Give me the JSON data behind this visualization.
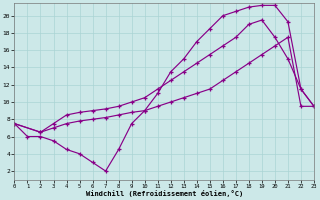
{
  "background_color": "#cce8e8",
  "grid_color": "#aad4d4",
  "line_color": "#880088",
  "xlim": [
    0,
    23
  ],
  "ylim": [
    1,
    21.5
  ],
  "xticks": [
    0,
    1,
    2,
    3,
    4,
    5,
    6,
    7,
    8,
    9,
    10,
    11,
    12,
    13,
    14,
    15,
    16,
    17,
    18,
    19,
    20,
    21,
    22,
    23
  ],
  "yticks": [
    2,
    4,
    6,
    8,
    10,
    12,
    14,
    16,
    18,
    20
  ],
  "xlabel": "Windchill (Refroidissement éolien,°C)",
  "curve1_x": [
    0,
    1,
    2,
    3,
    4,
    5,
    6,
    7,
    8,
    9,
    10,
    11,
    12,
    13,
    14,
    15,
    16,
    17,
    18,
    19,
    20,
    21,
    22,
    23
  ],
  "curve1_y": [
    7.5,
    6.0,
    6.0,
    5.5,
    4.5,
    4.0,
    3.0,
    2.0,
    4.5,
    7.5,
    9.0,
    11.0,
    13.5,
    15.0,
    17.0,
    18.5,
    20.0,
    20.5,
    21.0,
    21.2,
    21.2,
    19.3,
    11.5,
    9.5
  ],
  "curve2_x": [
    0,
    2,
    3,
    4,
    5,
    6,
    7,
    8,
    9,
    10,
    11,
    12,
    13,
    14,
    15,
    16,
    17,
    18,
    19,
    20,
    21,
    22,
    23
  ],
  "curve2_y": [
    7.5,
    6.5,
    7.5,
    8.5,
    8.8,
    9.0,
    9.2,
    9.5,
    10.0,
    10.5,
    11.5,
    12.5,
    13.5,
    14.5,
    15.5,
    16.5,
    17.5,
    19.0,
    19.5,
    17.5,
    15.0,
    11.5,
    9.5
  ],
  "curve3_x": [
    0,
    2,
    3,
    4,
    5,
    6,
    7,
    8,
    9,
    10,
    11,
    12,
    13,
    14,
    15,
    16,
    17,
    18,
    19,
    20,
    21,
    22,
    23
  ],
  "curve3_y": [
    7.5,
    6.5,
    7.0,
    7.5,
    7.8,
    8.0,
    8.2,
    8.5,
    8.8,
    9.0,
    9.5,
    10.0,
    10.5,
    11.0,
    11.5,
    12.5,
    13.5,
    14.5,
    15.5,
    16.5,
    17.5,
    9.5,
    9.5
  ]
}
